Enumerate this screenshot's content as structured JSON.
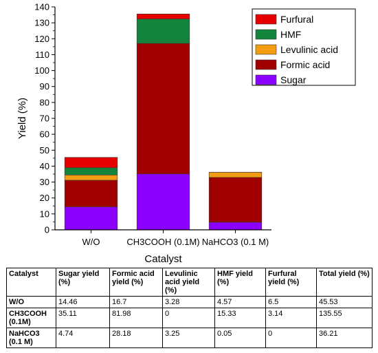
{
  "chart_data": {
    "type": "bar",
    "stacked": true,
    "xlabel": "Catalyst",
    "ylabel": "Yield (%)",
    "ylim": [
      0,
      140
    ],
    "yticks": [
      0,
      10,
      20,
      30,
      40,
      50,
      60,
      70,
      80,
      90,
      100,
      110,
      120,
      130,
      140
    ],
    "categories": [
      "W/O",
      "CH3COOH (0.1M)",
      "NaHCO3 (0.1 M)"
    ],
    "series": [
      {
        "name": "Sugar",
        "color": "#8b00ff",
        "values": [
          14.46,
          35.11,
          4.74
        ]
      },
      {
        "name": "Formic acid",
        "color": "#a00000",
        "values": [
          16.7,
          81.98,
          28.18
        ]
      },
      {
        "name": "Levulinic acid",
        "color": "#f39c12",
        "values": [
          3.28,
          0,
          3.25
        ]
      },
      {
        "name": "HMF",
        "color": "#14833b",
        "values": [
          4.57,
          15.33,
          0.05
        ]
      },
      {
        "name": "Furfural",
        "color": "#e60000",
        "values": [
          6.5,
          3.14,
          0
        ]
      }
    ],
    "legend_order": [
      "Furfural",
      "HMF",
      "Levulinic acid",
      "Formic acid",
      "Sugar"
    ],
    "legend_position": "top-right",
    "grid": false
  },
  "table": {
    "headers": [
      "Catalyst",
      "Sugar yield (%)",
      "Formic acid yield (%)",
      "Levulinic acid yield (%)",
      "HMF yield (%)",
      "Furfural yield (%)",
      "Total yield (%)"
    ],
    "rows": [
      [
        "W/O",
        "14.46",
        "16.7",
        "3.28",
        "4.57",
        "6.5",
        "45.53"
      ],
      [
        "CH3COOH (0.1M)",
        "35.11",
        "81.98",
        "0",
        "15.33",
        "3.14",
        "135.55"
      ],
      [
        "NaHCO3 (0.1 M)",
        "4.74",
        "28.18",
        "3.25",
        "0.05",
        "0",
        "36.21"
      ]
    ]
  }
}
